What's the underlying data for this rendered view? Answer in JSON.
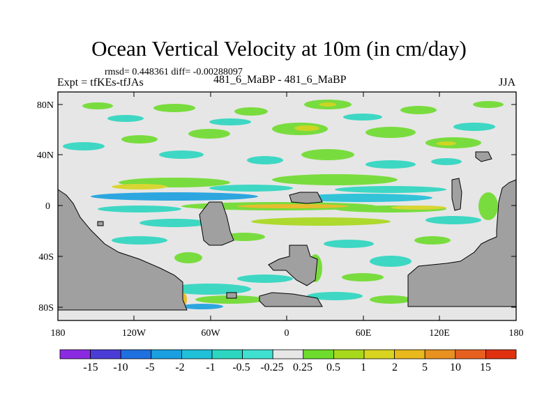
{
  "header": {
    "title": "Ocean Vertical Velocity at 10m (in cm/day)",
    "stats": "rmsd= 0.448361 diff= -0.00288097",
    "experiment": "Expt = tfKEs-tfJAs",
    "runs": "481_6_MaBP - 481_6_MaBP",
    "season": "JJA"
  },
  "map": {
    "lat_labels": [
      "80N",
      "40N",
      "0",
      "40S",
      "80S"
    ],
    "lon_labels": [
      "180",
      "120W",
      "60W",
      "0",
      "60E",
      "120E",
      "180"
    ],
    "land_color": "#a0a0a0",
    "background_color": "#e6e6e6"
  },
  "colorbar": {
    "labels": [
      "-15",
      "-10",
      "-5",
      "-2",
      "-1",
      "-0.5",
      "-0.25",
      "0.25",
      "0.5",
      "1",
      "2",
      "5",
      "10",
      "15"
    ],
    "colors": [
      "#8a2be2",
      "#4b3cd8",
      "#1e6fe0",
      "#1aa0e0",
      "#20c0d8",
      "#2cd6c0",
      "#40e0d0",
      "#e6e6e6",
      "#6edc2c",
      "#a8d81c",
      "#d8d420",
      "#e8b81c",
      "#e89020",
      "#e86020",
      "#e03010"
    ]
  }
}
